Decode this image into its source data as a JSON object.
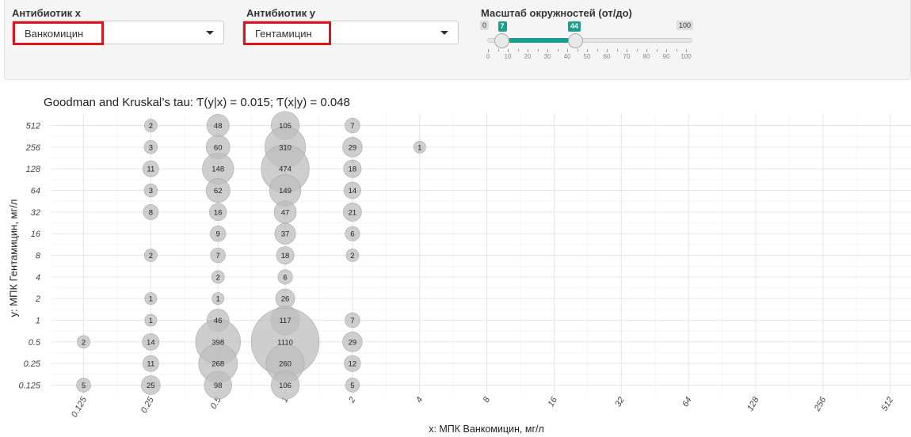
{
  "controls": {
    "x_label": "Антибиотик x",
    "x_selected": "Ванкомицин",
    "y_label": "Антибиотик y",
    "y_selected": "Гентамицин",
    "scale_label": "Масштаб окружностей (от/до)",
    "slider": {
      "min": 0,
      "max": 100,
      "from": 7,
      "to": 44,
      "min_label": "0",
      "max_label": "100",
      "from_label": "7",
      "to_label": "44",
      "ticks": [
        "0",
        "10",
        "20",
        "30",
        "40",
        "50",
        "60",
        "70",
        "80",
        "90",
        "100"
      ],
      "accent_color": "#1a9e8f"
    },
    "highlight_color": "#e0141e"
  },
  "chart_data": {
    "type": "scatter",
    "title": "Goodman and Kruskal’s tau: Ƭ(y|x) = 0.015; Ƭ(x|y) = 0.048",
    "xlabel": "x: МПК Ванкомицин, мг/л",
    "ylabel": "y: МПК Гентамицин, мг/л",
    "x_ticks": [
      "0.125",
      "0.25",
      "0.5",
      "1",
      "2",
      "4",
      "8",
      "16",
      "32",
      "64",
      "128",
      "256",
      "512"
    ],
    "y_ticks": [
      "0.125",
      "0.25",
      "0.5",
      "1",
      "2",
      "4",
      "8",
      "16",
      "32",
      "64",
      "128",
      "256",
      "512"
    ],
    "x_scale": "log2",
    "y_scale": "log2",
    "grid": true,
    "bubble_color": "#bdbdbd",
    "points": [
      {
        "x": "0.25",
        "y": "512",
        "n": 2
      },
      {
        "x": "0.5",
        "y": "512",
        "n": 48
      },
      {
        "x": "1",
        "y": "512",
        "n": 105
      },
      {
        "x": "2",
        "y": "512",
        "n": 7
      },
      {
        "x": "0.25",
        "y": "256",
        "n": 3
      },
      {
        "x": "0.5",
        "y": "256",
        "n": 60
      },
      {
        "x": "1",
        "y": "256",
        "n": 310
      },
      {
        "x": "2",
        "y": "256",
        "n": 29
      },
      {
        "x": "4",
        "y": "256",
        "n": 1
      },
      {
        "x": "0.25",
        "y": "128",
        "n": 11
      },
      {
        "x": "0.5",
        "y": "128",
        "n": 148
      },
      {
        "x": "1",
        "y": "128",
        "n": 474
      },
      {
        "x": "2",
        "y": "128",
        "n": 18
      },
      {
        "x": "0.25",
        "y": "64",
        "n": 3
      },
      {
        "x": "0.5",
        "y": "64",
        "n": 62
      },
      {
        "x": "1",
        "y": "64",
        "n": 149
      },
      {
        "x": "2",
        "y": "64",
        "n": 14
      },
      {
        "x": "0.25",
        "y": "32",
        "n": 8
      },
      {
        "x": "0.5",
        "y": "32",
        "n": 16
      },
      {
        "x": "1",
        "y": "32",
        "n": 47
      },
      {
        "x": "2",
        "y": "32",
        "n": 21
      },
      {
        "x": "0.5",
        "y": "16",
        "n": 9
      },
      {
        "x": "1",
        "y": "16",
        "n": 37
      },
      {
        "x": "2",
        "y": "16",
        "n": 6
      },
      {
        "x": "0.25",
        "y": "8",
        "n": 2
      },
      {
        "x": "0.5",
        "y": "8",
        "n": 7
      },
      {
        "x": "1",
        "y": "8",
        "n": 18
      },
      {
        "x": "2",
        "y": "8",
        "n": 2
      },
      {
        "x": "0.5",
        "y": "4",
        "n": 2
      },
      {
        "x": "1",
        "y": "4",
        "n": 6
      },
      {
        "x": "0.25",
        "y": "2",
        "n": 1
      },
      {
        "x": "0.5",
        "y": "2",
        "n": 1
      },
      {
        "x": "1",
        "y": "2",
        "n": 26
      },
      {
        "x": "0.25",
        "y": "1",
        "n": 1
      },
      {
        "x": "0.5",
        "y": "1",
        "n": 46
      },
      {
        "x": "1",
        "y": "1",
        "n": 117
      },
      {
        "x": "2",
        "y": "1",
        "n": 7
      },
      {
        "x": "0.125",
        "y": "0.5",
        "n": 2
      },
      {
        "x": "0.25",
        "y": "0.5",
        "n": 14
      },
      {
        "x": "0.5",
        "y": "0.5",
        "n": 398
      },
      {
        "x": "1",
        "y": "0.5",
        "n": 1110
      },
      {
        "x": "2",
        "y": "0.5",
        "n": 29
      },
      {
        "x": "0.25",
        "y": "0.25",
        "n": 11
      },
      {
        "x": "0.5",
        "y": "0.25",
        "n": 268
      },
      {
        "x": "1",
        "y": "0.25",
        "n": 260
      },
      {
        "x": "2",
        "y": "0.25",
        "n": 12
      },
      {
        "x": "0.125",
        "y": "0.125",
        "n": 5
      },
      {
        "x": "0.25",
        "y": "0.125",
        "n": 25
      },
      {
        "x": "0.5",
        "y": "0.125",
        "n": 98
      },
      {
        "x": "1",
        "y": "0.125",
        "n": 106
      },
      {
        "x": "2",
        "y": "0.125",
        "n": 5
      }
    ]
  }
}
